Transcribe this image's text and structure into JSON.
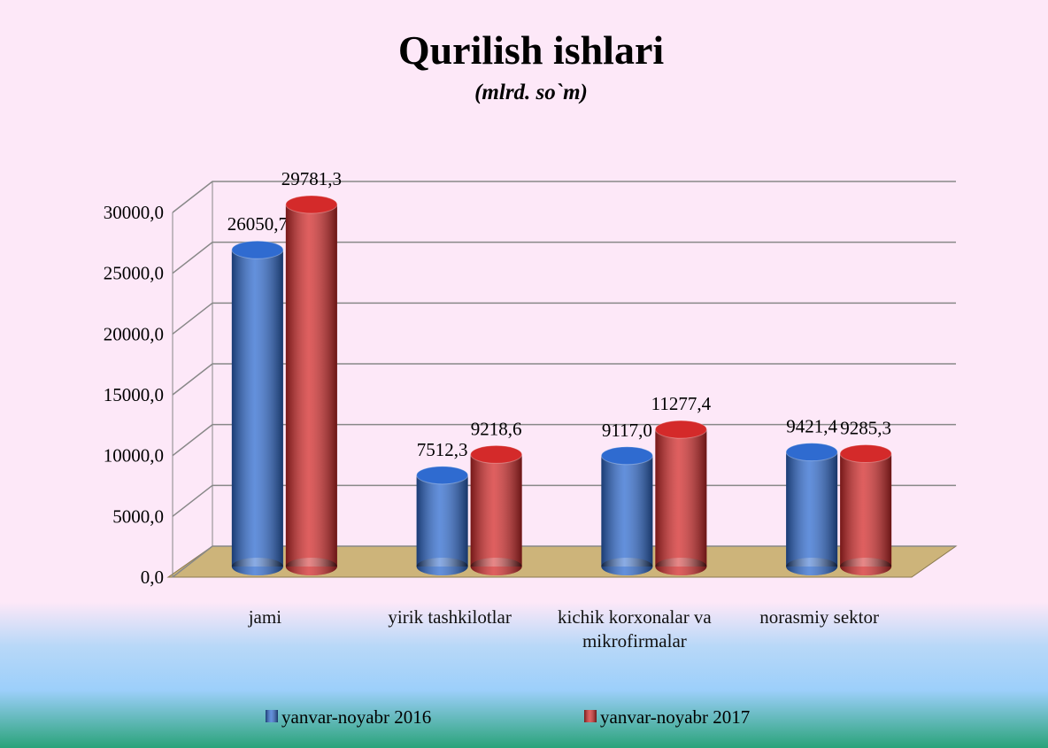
{
  "chart_data": {
    "type": "bar3d",
    "title": "Qurilish ishlari",
    "subtitle": "(mlrd. so`m)",
    "categories": [
      "jami",
      "yirik tashkilotlar",
      "kichik korxonalar va mikrofirmalar",
      "norasmiy sektor"
    ],
    "series": [
      {
        "name": "yanvar-noyabr 2016",
        "color": "#2f6bd0",
        "values": [
          26050.7,
          7512.3,
          9117.0,
          9421.4
        ],
        "value_labels": [
          "26050,7",
          "7512,3",
          "9117,0",
          "9421,4"
        ]
      },
      {
        "name": "yanvar-noyabr 2017",
        "color": "#d42a2a",
        "values": [
          29781.3,
          9218.6,
          11277.4,
          9285.3
        ],
        "value_labels": [
          "29781,3",
          "9218,6",
          "11277,4",
          "9285,3"
        ]
      }
    ],
    "ylim": [
      0,
      30000
    ],
    "yticks": [
      {
        "value": 0,
        "label": "0,0"
      },
      {
        "value": 5000,
        "label": "5000,0"
      },
      {
        "value": 10000,
        "label": "10000,0"
      },
      {
        "value": 15000,
        "label": "15000,0"
      },
      {
        "value": 20000,
        "label": "20000,0"
      },
      {
        "value": 25000,
        "label": "25000,0"
      },
      {
        "value": 30000,
        "label": "30000,0"
      }
    ],
    "grid": true,
    "legend": "bottom"
  }
}
